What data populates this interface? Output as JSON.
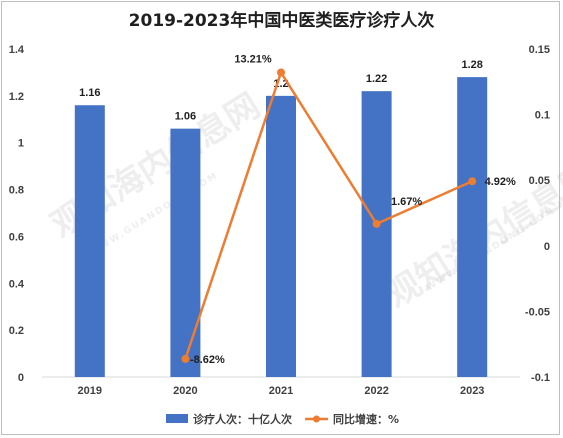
{
  "chart_data": {
    "type": "bar",
    "title": "2019-2023年中国中医类医疗诊疗人次",
    "categories": [
      "2019",
      "2020",
      "2021",
      "2022",
      "2023"
    ],
    "series": [
      {
        "name": "诊疗人次：十亿人次",
        "type": "bar",
        "axis": "left",
        "values": [
          1.16,
          1.06,
          1.2,
          1.22,
          1.28
        ],
        "labels": [
          "1.16",
          "1.06",
          "1.2",
          "1.22",
          "1.28"
        ],
        "color": "#4472c4"
      },
      {
        "name": "同比增速：%",
        "type": "line",
        "axis": "right",
        "values": [
          null,
          -0.0862,
          0.1321,
          0.0167,
          0.0492
        ],
        "labels": [
          "",
          "-8.62%",
          "13.21%",
          "1.67%",
          "4.92%"
        ],
        "color": "#ed7d31"
      }
    ],
    "y_left": {
      "ylim": [
        0,
        1.4
      ],
      "ticks": [
        "0",
        "0.2",
        "0.4",
        "0.6",
        "0.8",
        "1",
        "1.2",
        "1.4"
      ]
    },
    "y_right": {
      "ylim": [
        -0.1,
        0.15
      ],
      "ticks": [
        "-0.1",
        "-0.05",
        "0",
        "0.05",
        "0.1",
        "0.15"
      ]
    },
    "legend": "bottom",
    "grid": false
  },
  "watermark": {
    "text": "观知海内信息网",
    "sub": "WWW.GUANDONG.COM"
  }
}
